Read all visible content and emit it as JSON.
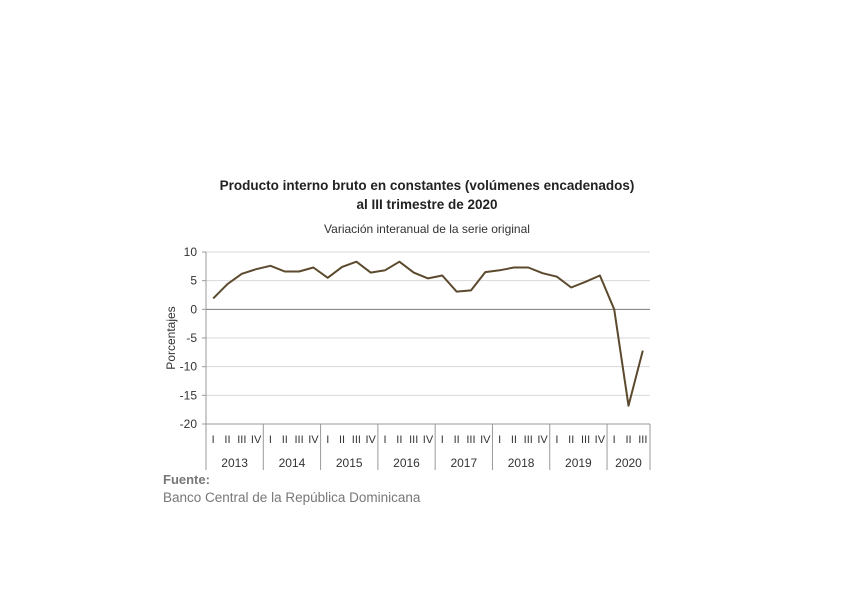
{
  "chart_data": {
    "type": "line",
    "title_line1": "Producto interno bruto en constantes (volúmenes encadenados)",
    "title_line2": "al III trimestre de 2020",
    "subtitle": "Variación interanual de la serie original",
    "ylabel": "Porcentajes",
    "ylim": [
      -20,
      10
    ],
    "yticks": [
      10,
      5,
      0,
      -5,
      -10,
      -15,
      -20
    ],
    "grid": true,
    "line_color": "#5c4a2e",
    "quarter_labels": [
      "I",
      "II",
      "III",
      "IV",
      "I",
      "II",
      "III",
      "IV",
      "I",
      "II",
      "III",
      "IV",
      "I",
      "II",
      "III",
      "IV",
      "I",
      "II",
      "III",
      "IV",
      "I",
      "II",
      "III",
      "IV",
      "I",
      "II",
      "III",
      "IV",
      "I",
      "II",
      "III"
    ],
    "year_groups": [
      {
        "year": "2013",
        "count": 4
      },
      {
        "year": "2014",
        "count": 4
      },
      {
        "year": "2015",
        "count": 4
      },
      {
        "year": "2016",
        "count": 4
      },
      {
        "year": "2017",
        "count": 4
      },
      {
        "year": "2018",
        "count": 4
      },
      {
        "year": "2019",
        "count": 4
      },
      {
        "year": "2020",
        "count": 3
      }
    ],
    "series": [
      {
        "values": [
          1.9,
          4.4,
          6.2,
          7.0,
          7.6,
          6.6,
          6.6,
          7.3,
          5.5,
          7.4,
          8.3,
          6.4,
          6.8,
          8.3,
          6.4,
          5.4,
          5.9,
          3.1,
          3.3,
          6.5,
          6.8,
          7.3,
          7.3,
          6.3,
          5.7,
          3.8,
          4.8,
          5.9,
          0.0,
          -16.8,
          -7.2
        ]
      }
    ]
  },
  "source": {
    "label": "Fuente:",
    "text": "Banco Central de la República Dominicana"
  }
}
